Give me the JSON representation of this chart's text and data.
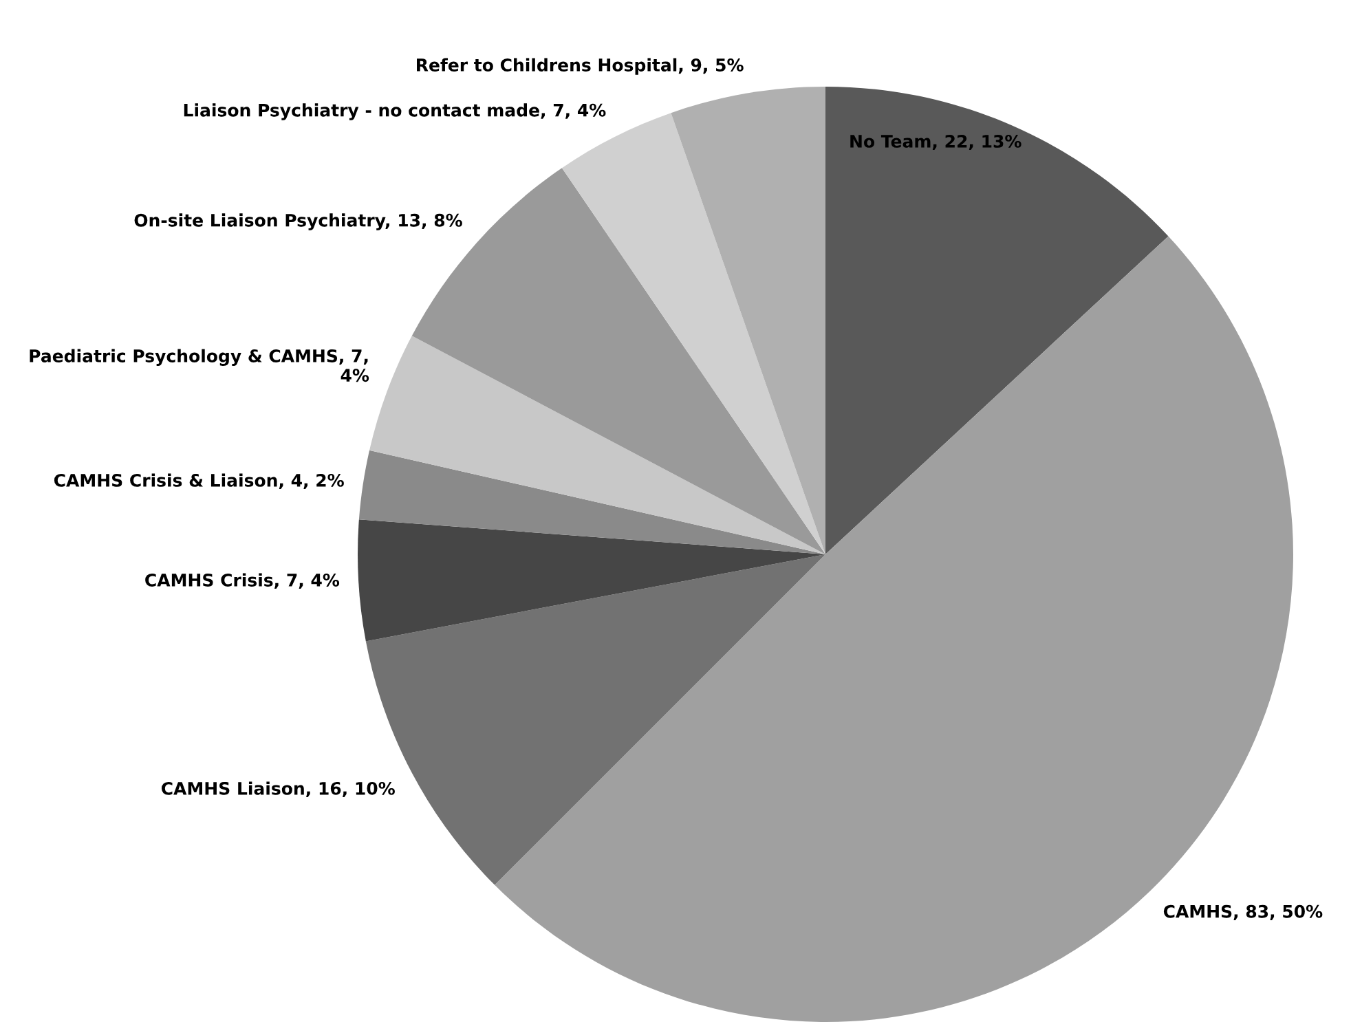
{
  "chart_data": {
    "type": "pie",
    "categories": [
      "No Team",
      "CAMHS",
      "CAMHS Liaison",
      "CAMHS Crisis",
      "CAMHS Crisis & Liaison",
      "Paediatric Psychology & CAMHS",
      "On-site Liaison Psychiatry",
      "Liaison Psychiatry - no contact made",
      "Refer to Childrens Hospital"
    ],
    "values": [
      22,
      83,
      16,
      7,
      4,
      7,
      13,
      7,
      9
    ],
    "colors": [
      "#595959",
      "#a0a0a0",
      "#727272",
      "#464646",
      "#8a8a8a",
      "#c8c8c8",
      "#9a9a9a",
      "#d0d0d0",
      "#b0b0b0"
    ],
    "value_labels": [
      "22, 13%",
      "83, 50%",
      "16, 10%",
      "7, 4%",
      "4, 2%",
      "7, 4%",
      "13, 8%",
      "7, 4%",
      "9, 5%"
    ],
    "legend": false
  }
}
